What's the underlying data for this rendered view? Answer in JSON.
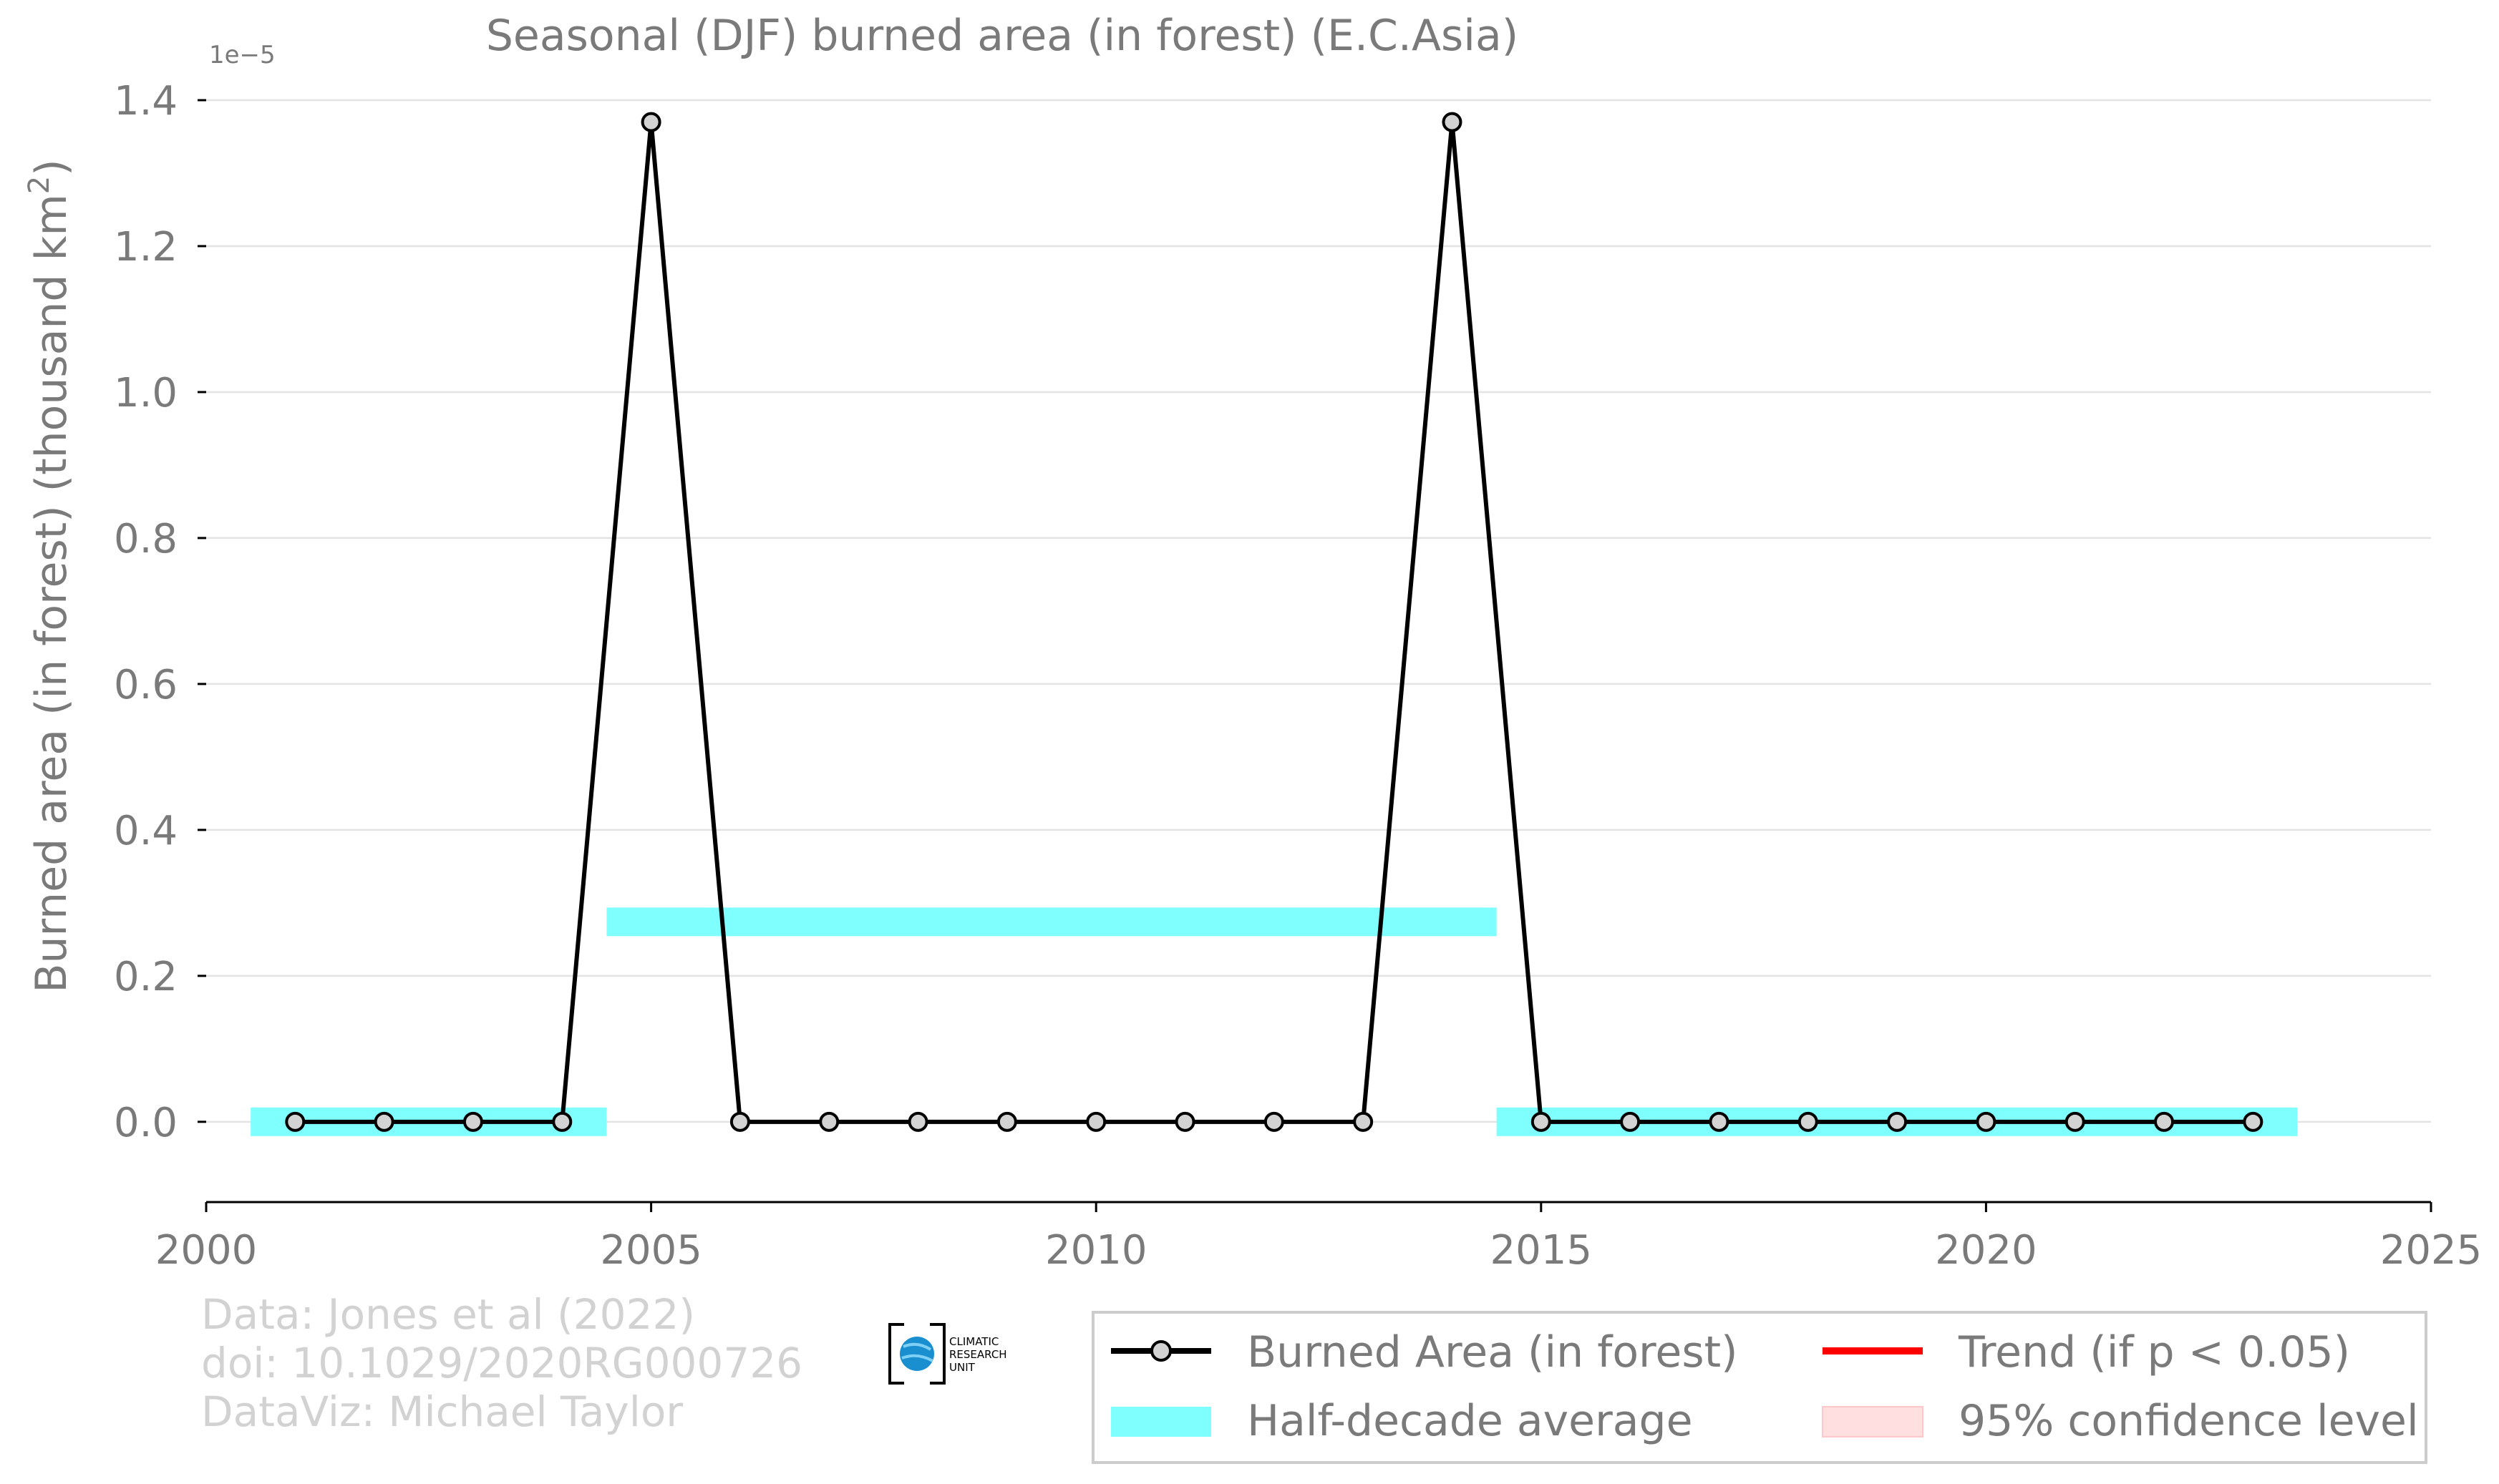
{
  "chart_data": {
    "type": "line",
    "title": "Seasonal (DJF) burned area (in forest) (E.C.Asia)",
    "ylabel_main": "Burned area (in forest) (thousand km",
    "ylabel_sup": "2",
    "ylabel_close": ")",
    "y_offset_label": "1e−5",
    "xlim": [
      2000,
      2025
    ],
    "ylim": [
      -0.11,
      1.4
    ],
    "y_unit_scale": "1e-5",
    "x_ticks": [
      2000,
      2005,
      2010,
      2015,
      2020,
      2025
    ],
    "y_ticks": [
      0.0,
      0.2,
      0.4,
      0.6,
      0.8,
      1.0,
      1.2,
      1.4
    ],
    "y_tick_labels": [
      "0.0",
      "0.2",
      "0.4",
      "0.6",
      "0.8",
      "1.0",
      "1.2",
      "1.4"
    ],
    "grid": "horizontal",
    "series": [
      {
        "name": "Burned Area (in forest)",
        "color": "#000000",
        "x": [
          2001,
          2002,
          2003,
          2004,
          2005,
          2006,
          2007,
          2008,
          2009,
          2010,
          2011,
          2012,
          2013,
          2014,
          2015,
          2016,
          2017,
          2018,
          2019,
          2020,
          2021,
          2022,
          2023
        ],
        "y": [
          0,
          0,
          0,
          0,
          1.37,
          0,
          0,
          0,
          0,
          0,
          0,
          0,
          0,
          1.37,
          0,
          0,
          0,
          0,
          0,
          0,
          0,
          0,
          0
        ]
      }
    ],
    "half_decade_average": {
      "name": "Half-decade average",
      "color": "#80ffff",
      "segments": [
        {
          "x_start": 2000.5,
          "x_end": 2004.5,
          "value": 0.0
        },
        {
          "x_start": 2004.5,
          "x_end": 2014.5,
          "value": 0.274
        },
        {
          "x_start": 2014.5,
          "x_end": 2023.5,
          "value": 0.0
        }
      ]
    },
    "legend": {
      "placement": "bottom-right",
      "entries": [
        {
          "label": "Burned Area (in forest)",
          "kind": "line-marker",
          "color": "#000000"
        },
        {
          "label": "Trend (if p < 0.05)",
          "kind": "line",
          "color": "#ff0000"
        },
        {
          "label": "Half-decade average",
          "kind": "band",
          "color": "#80ffff"
        },
        {
          "label": "95% confidence level",
          "kind": "patch",
          "color": "#ffdfe0"
        }
      ]
    },
    "credits": [
      "Data: Jones et al (2022)",
      "doi: 10.1029/2020RG000726",
      "DataViz: Michael Taylor"
    ],
    "logo": {
      "lines": [
        "CLIMATIC",
        "RESEARCH",
        "UNIT"
      ]
    }
  }
}
